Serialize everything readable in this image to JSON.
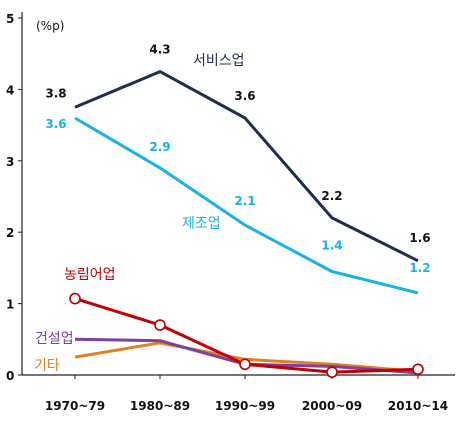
{
  "chart_data": {
    "type": "line",
    "unit_label": "(%p)",
    "categories": [
      "1970~79",
      "1980~89",
      "1990~99",
      "2000~09",
      "2010~14"
    ],
    "ylim": [
      0,
      5
    ],
    "yticks": [
      "0",
      "1",
      "2",
      "3",
      "4",
      "5"
    ],
    "grid": false,
    "series": [
      {
        "name": "서비스업",
        "color": "#1f2e4d",
        "values": [
          3.75,
          4.25,
          3.6,
          2.2,
          1.6
        ],
        "labels": [
          "3.8",
          "4.3",
          "3.6",
          "2.2",
          "1.6"
        ],
        "markers": false
      },
      {
        "name": "제조업",
        "color": "#1ab2e6",
        "values": [
          3.6,
          2.9,
          2.1,
          1.45,
          1.15
        ],
        "labels": [
          "3.6",
          "2.9",
          "2.1",
          "1.4",
          "1.2"
        ],
        "markers": false
      },
      {
        "name": "농림어업",
        "color": "#c00000",
        "values": [
          1.07,
          0.7,
          0.15,
          0.04,
          0.08
        ],
        "labels": [],
        "markers": true
      },
      {
        "name": "건설업",
        "color": "#7f3fa0",
        "values": [
          0.5,
          0.48,
          0.15,
          0.12,
          0.03
        ],
        "labels": [],
        "markers": false
      },
      {
        "name": "기타",
        "color": "#e08020",
        "values": [
          0.25,
          0.45,
          0.22,
          0.15,
          0.05
        ],
        "labels": [],
        "markers": false
      }
    ]
  }
}
